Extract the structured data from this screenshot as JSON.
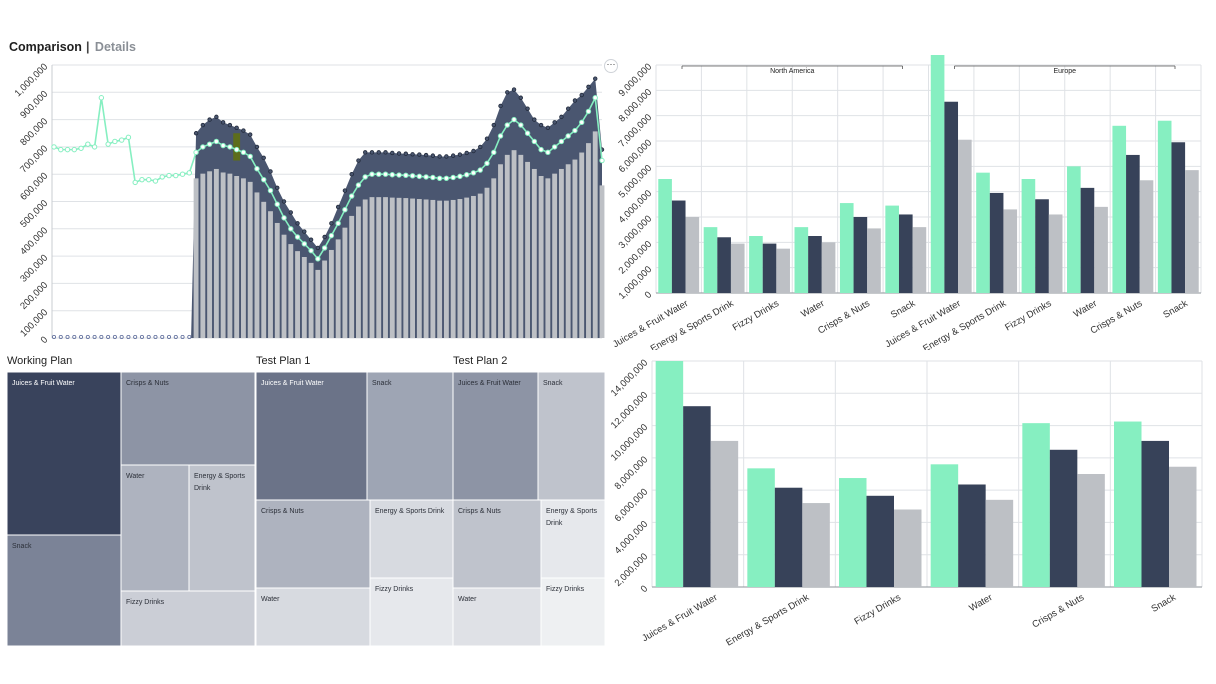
{
  "tabs": {
    "active": "Comparison",
    "separator": "|",
    "inactive": "Details"
  },
  "menu": {
    "icon": "more-dots-icon",
    "glyph": "···"
  },
  "colors": {
    "mint": "#86efc1",
    "navy": "#374259",
    "grey": "#bdc0c5",
    "area": "#4a5670"
  },
  "top_left_chart": {
    "y_ticks": [
      "0",
      "100,000",
      "200,000",
      "300,000",
      "400,000",
      "500,000",
      "600,000",
      "700,000",
      "800,000",
      "900,000",
      "1,000,000"
    ],
    "ylim": [
      0,
      1000000
    ]
  },
  "chart_data": [
    {
      "type": "line",
      "ylim": [
        0,
        1000000
      ],
      "series": [
        {
          "values": [
            700000,
            690000,
            690000,
            690000,
            695000,
            710000,
            700000,
            880000,
            710000,
            720000,
            725000,
            735000,
            570000,
            580000,
            580000,
            575000,
            590000,
            595000,
            595000,
            600000,
            605000,
            680000,
            700000,
            710000,
            720000,
            705000,
            700000,
            690000,
            680000,
            665000,
            620000,
            580000,
            540000,
            490000,
            440000,
            400000,
            370000,
            345000,
            320000,
            290000,
            330000,
            375000,
            420000,
            470000,
            520000,
            560000,
            590000,
            600000,
            600000,
            600000,
            598000,
            597000,
            596000,
            594000,
            592000,
            590000,
            588000,
            585000,
            585000,
            588000,
            592000,
            598000,
            605000,
            615000,
            640000,
            680000,
            740000,
            780000,
            800000,
            780000,
            750000,
            720000,
            690000,
            680000,
            700000,
            720000,
            740000,
            760000,
            790000,
            830000,
            880000,
            650000
          ]
        },
        {
          "values": [
            0,
            0,
            0,
            0,
            0,
            0,
            0,
            0,
            0,
            0,
            0,
            0,
            0,
            0,
            0,
            0,
            0,
            0,
            0,
            0,
            0,
            750000,
            780000,
            800000,
            810000,
            790000,
            780000,
            770000,
            760000,
            745000,
            700000,
            660000,
            610000,
            550000,
            500000,
            460000,
            420000,
            390000,
            360000,
            330000,
            370000,
            420000,
            480000,
            540000,
            600000,
            650000,
            680000,
            680000,
            680000,
            680000,
            678000,
            676000,
            675000,
            673000,
            672000,
            670000,
            668000,
            665000,
            665000,
            668000,
            672000,
            678000,
            685000,
            700000,
            730000,
            780000,
            850000,
            900000,
            910000,
            880000,
            840000,
            800000,
            780000,
            770000,
            790000,
            810000,
            840000,
            870000,
            890000,
            920000,
            950000,
            690000
          ]
        }
      ]
    },
    {
      "type": "bar",
      "categories": [
        "Juices & Fruit Water",
        "Energy & Sports Drink",
        "Fizzy Drinks",
        "Water",
        "Crisps & Nuts",
        "Snack",
        "Juices & Fruit Water",
        "Energy & Sports Drink",
        "Fizzy Drinks",
        "Water",
        "Crisps & Nuts",
        "Snack"
      ],
      "groups": [
        "North America",
        "Europe"
      ],
      "ylim": [
        0,
        9000000
      ],
      "y_ticks": [
        "0",
        "1,000,000",
        "2,000,000",
        "3,000,000",
        "4,000,000",
        "5,000,000",
        "6,000,000",
        "7,000,000",
        "8,000,000",
        "9,000,000"
      ],
      "series": [
        {
          "values": [
            4500000,
            2600000,
            2250000,
            2600000,
            3550000,
            3450000,
            9500000,
            4750000,
            4500000,
            5000000,
            6600000,
            6800000
          ]
        },
        {
          "values": [
            3650000,
            2200000,
            1950000,
            2250000,
            3000000,
            3100000,
            7550000,
            3950000,
            3700000,
            4150000,
            5450000,
            5950000
          ]
        },
        {
          "values": [
            3000000,
            1950000,
            1750000,
            2000000,
            2550000,
            2600000,
            6050000,
            3300000,
            3100000,
            3400000,
            4450000,
            4850000
          ]
        }
      ]
    },
    {
      "type": "bar",
      "categories": [
        "Juices & Fruit Water",
        "Energy & Sports Drink",
        "Fizzy Drinks",
        "Water",
        "Crisps & Nuts",
        "Snack"
      ],
      "ylim": [
        0,
        14000000
      ],
      "y_ticks": [
        "0",
        "2,000,000",
        "4,000,000",
        "6,000,000",
        "8,000,000",
        "10,000,000",
        "12,000,000",
        "14,000,000"
      ],
      "series": [
        {
          "values": [
            14000000,
            7350000,
            6750000,
            7600000,
            10150000,
            10250000
          ]
        },
        {
          "values": [
            11200000,
            6150000,
            5650000,
            6350000,
            8500000,
            9050000
          ]
        },
        {
          "values": [
            9050000,
            5200000,
            4800000,
            5400000,
            7000000,
            7450000
          ]
        }
      ]
    }
  ],
  "treemaps": {
    "working_plan": {
      "title": "Working Plan",
      "cells": [
        "Juices & Fruit Water",
        "Snack",
        "Crisps & Nuts",
        "Water",
        "Energy & Sports Drink",
        "Fizzy Drinks"
      ]
    },
    "test_plan_1": {
      "title": "Test Plan 1",
      "cells": [
        "Juices & Fruit Water",
        "Snack",
        "Crisps & Nuts",
        "Energy & Sports Drink",
        "Water",
        "Fizzy Drinks"
      ]
    },
    "test_plan_2": {
      "title": "Test Plan 2",
      "cells": [
        "Juices & Fruit Water",
        "Snack",
        "Crisps & Nuts",
        "Energy & Sports Drink",
        "Water",
        "Fizzy Drinks"
      ]
    }
  }
}
